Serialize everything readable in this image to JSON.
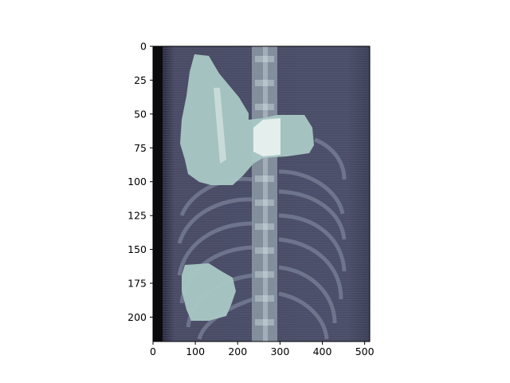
{
  "image": {
    "description_type": "medical CT coronal slice with segmentation overlay",
    "colormap": "bone",
    "background_color": "#ffffff",
    "overlay_color": "#a9c8c4"
  },
  "axes": {
    "x_ticks": [
      "0",
      "100",
      "200",
      "300",
      "400",
      "500"
    ],
    "y_ticks": [
      "0",
      "25",
      "50",
      "75",
      "100",
      "125",
      "150",
      "175",
      "200"
    ],
    "xlim": [
      0,
      512
    ],
    "ylim": [
      218,
      0
    ]
  }
}
